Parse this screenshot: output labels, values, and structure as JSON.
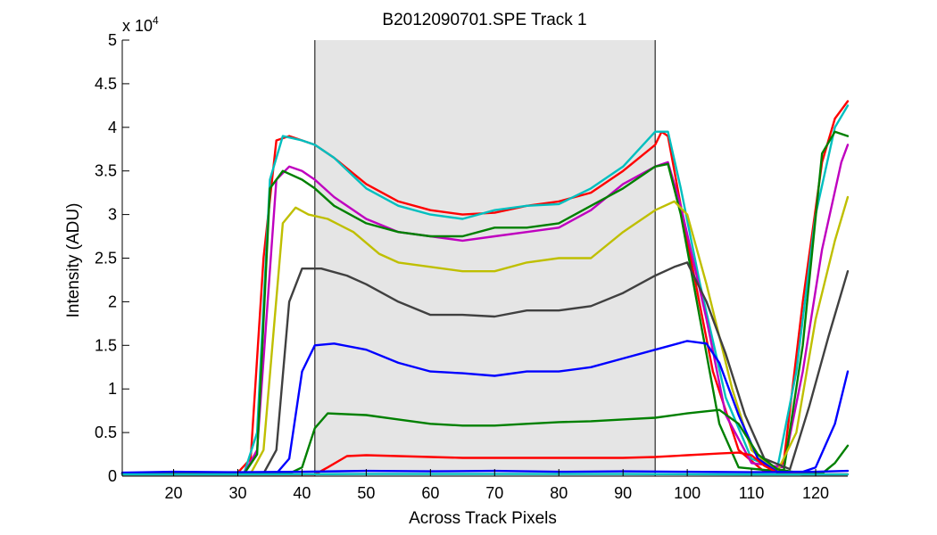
{
  "chart_data": {
    "type": "line",
    "title": "B2012090701.SPE   Track 1",
    "xlabel": "Across Track Pixels",
    "ylabel": "Intensity (ADU)",
    "y_exponent_label": "x 10",
    "y_exponent": "4",
    "xlim": [
      12,
      125
    ],
    "ylim": [
      0,
      50000
    ],
    "xticks": [
      20,
      30,
      40,
      50,
      60,
      70,
      80,
      90,
      100,
      110,
      120
    ],
    "yticks": [
      0,
      5000,
      10000,
      15000,
      20000,
      25000,
      30000,
      35000,
      40000,
      45000,
      50000
    ],
    "ytick_labels": [
      "0",
      "0.5",
      "1",
      "1.5",
      "2",
      "2.5",
      "3",
      "3.5",
      "4",
      "4.5",
      "5"
    ],
    "grid": false,
    "legend": "none",
    "shaded_region": {
      "x": [
        42,
        95
      ],
      "color": "#e5e5e5"
    },
    "series": [
      {
        "color": "#ff0000",
        "points": [
          [
            12,
            300
          ],
          [
            30,
            400
          ],
          [
            32,
            2000
          ],
          [
            34,
            25000
          ],
          [
            36,
            38500
          ],
          [
            38,
            39000
          ],
          [
            40,
            38500
          ],
          [
            42,
            38000
          ],
          [
            45,
            36500
          ],
          [
            50,
            33500
          ],
          [
            55,
            31500
          ],
          [
            60,
            30500
          ],
          [
            65,
            30000
          ],
          [
            70,
            30200
          ],
          [
            75,
            31000
          ],
          [
            80,
            31500
          ],
          [
            85,
            32500
          ],
          [
            90,
            35000
          ],
          [
            95,
            38000
          ],
          [
            96,
            39500
          ],
          [
            97,
            39000
          ],
          [
            98,
            35000
          ],
          [
            100,
            27000
          ],
          [
            104,
            12000
          ],
          [
            108,
            3000
          ],
          [
            112,
            500
          ],
          [
            115,
            1500
          ],
          [
            118,
            20000
          ],
          [
            121,
            36000
          ],
          [
            123,
            41000
          ],
          [
            125,
            43000
          ]
        ]
      },
      {
        "color": "#00bfbf",
        "points": [
          [
            12,
            300
          ],
          [
            31,
            400
          ],
          [
            33,
            5000
          ],
          [
            35,
            34000
          ],
          [
            37,
            39000
          ],
          [
            40,
            38500
          ],
          [
            42,
            38000
          ],
          [
            45,
            36500
          ],
          [
            50,
            33000
          ],
          [
            55,
            31000
          ],
          [
            60,
            30000
          ],
          [
            65,
            29500
          ],
          [
            70,
            30500
          ],
          [
            75,
            31000
          ],
          [
            80,
            31200
          ],
          [
            85,
            33000
          ],
          [
            90,
            35500
          ],
          [
            95,
            39500
          ],
          [
            97,
            39500
          ],
          [
            99,
            33000
          ],
          [
            102,
            22000
          ],
          [
            106,
            9000
          ],
          [
            110,
            2000
          ],
          [
            114,
            800
          ],
          [
            117,
            12000
          ],
          [
            120,
            30000
          ],
          [
            123,
            40000
          ],
          [
            125,
            42500
          ]
        ]
      },
      {
        "color": "#bf00bf",
        "points": [
          [
            12,
            300
          ],
          [
            31,
            300
          ],
          [
            33,
            3000
          ],
          [
            36,
            34000
          ],
          [
            38,
            35500
          ],
          [
            40,
            35000
          ],
          [
            42,
            34000
          ],
          [
            45,
            32000
          ],
          [
            50,
            29500
          ],
          [
            55,
            28000
          ],
          [
            60,
            27500
          ],
          [
            65,
            27000
          ],
          [
            70,
            27500
          ],
          [
            75,
            28000
          ],
          [
            80,
            28500
          ],
          [
            85,
            30500
          ],
          [
            90,
            33500
          ],
          [
            95,
            35500
          ],
          [
            97,
            36000
          ],
          [
            99,
            31000
          ],
          [
            103,
            18000
          ],
          [
            106,
            7000
          ],
          [
            110,
            1500
          ],
          [
            115,
            1000
          ],
          [
            118,
            12000
          ],
          [
            121,
            26000
          ],
          [
            124,
            36000
          ],
          [
            125,
            38000
          ]
        ]
      },
      {
        "color": "#008000",
        "points": [
          [
            12,
            300
          ],
          [
            31,
            300
          ],
          [
            33,
            2500
          ],
          [
            35,
            33000
          ],
          [
            37,
            35000
          ],
          [
            40,
            34000
          ],
          [
            42,
            33000
          ],
          [
            45,
            31000
          ],
          [
            50,
            29000
          ],
          [
            55,
            28000
          ],
          [
            60,
            27500
          ],
          [
            65,
            27500
          ],
          [
            70,
            28500
          ],
          [
            75,
            28500
          ],
          [
            80,
            29000
          ],
          [
            85,
            31000
          ],
          [
            90,
            33000
          ],
          [
            95,
            35500
          ],
          [
            97,
            35800
          ],
          [
            99,
            30000
          ],
          [
            102,
            18000
          ],
          [
            105,
            6000
          ],
          [
            108,
            1000
          ],
          [
            115,
            500
          ],
          [
            118,
            15000
          ],
          [
            121,
            37000
          ],
          [
            123,
            39500
          ],
          [
            125,
            39000
          ]
        ]
      },
      {
        "color": "#bfbf00",
        "points": [
          [
            12,
            300
          ],
          [
            32,
            300
          ],
          [
            34,
            3000
          ],
          [
            37,
            29000
          ],
          [
            39,
            30800
          ],
          [
            41,
            30000
          ],
          [
            44,
            29500
          ],
          [
            48,
            28000
          ],
          [
            52,
            25500
          ],
          [
            55,
            24500
          ],
          [
            60,
            24000
          ],
          [
            65,
            23500
          ],
          [
            70,
            23500
          ],
          [
            75,
            24500
          ],
          [
            80,
            25000
          ],
          [
            85,
            25000
          ],
          [
            90,
            28000
          ],
          [
            95,
            30500
          ],
          [
            98,
            31500
          ],
          [
            100,
            30000
          ],
          [
            103,
            22000
          ],
          [
            107,
            10000
          ],
          [
            110,
            3000
          ],
          [
            114,
            500
          ],
          [
            117,
            5000
          ],
          [
            120,
            18000
          ],
          [
            123,
            27000
          ],
          [
            125,
            32000
          ]
        ]
      },
      {
        "color": "#404040",
        "points": [
          [
            12,
            300
          ],
          [
            34,
            300
          ],
          [
            36,
            3000
          ],
          [
            38,
            20000
          ],
          [
            40,
            23800
          ],
          [
            43,
            23800
          ],
          [
            47,
            23000
          ],
          [
            50,
            22000
          ],
          [
            55,
            20000
          ],
          [
            60,
            18500
          ],
          [
            65,
            18500
          ],
          [
            70,
            18300
          ],
          [
            75,
            19000
          ],
          [
            80,
            19000
          ],
          [
            85,
            19500
          ],
          [
            90,
            21000
          ],
          [
            95,
            23000
          ],
          [
            98,
            24000
          ],
          [
            100,
            24500
          ],
          [
            103,
            20000
          ],
          [
            106,
            14000
          ],
          [
            109,
            7000
          ],
          [
            112,
            2000
          ],
          [
            116,
            800
          ],
          [
            119,
            8000
          ],
          [
            122,
            16000
          ],
          [
            125,
            23500
          ]
        ]
      },
      {
        "color": "#0000ff",
        "points": [
          [
            12,
            300
          ],
          [
            36,
            300
          ],
          [
            38,
            2000
          ],
          [
            40,
            12000
          ],
          [
            42,
            15000
          ],
          [
            45,
            15200
          ],
          [
            50,
            14500
          ],
          [
            55,
            13000
          ],
          [
            60,
            12000
          ],
          [
            65,
            11800
          ],
          [
            70,
            11500
          ],
          [
            75,
            12000
          ],
          [
            80,
            12000
          ],
          [
            85,
            12500
          ],
          [
            90,
            13500
          ],
          [
            95,
            14500
          ],
          [
            100,
            15500
          ],
          [
            103,
            15200
          ],
          [
            105,
            13000
          ],
          [
            108,
            7000
          ],
          [
            111,
            2000
          ],
          [
            114,
            500
          ],
          [
            118,
            500
          ],
          [
            120,
            1000
          ],
          [
            123,
            6000
          ],
          [
            125,
            12000
          ]
        ]
      },
      {
        "color": "#008000",
        "points": [
          [
            12,
            300
          ],
          [
            38,
            300
          ],
          [
            40,
            1000
          ],
          [
            42,
            5500
          ],
          [
            44,
            7200
          ],
          [
            50,
            7000
          ],
          [
            55,
            6500
          ],
          [
            60,
            6000
          ],
          [
            65,
            5800
          ],
          [
            70,
            5800
          ],
          [
            75,
            6000
          ],
          [
            80,
            6200
          ],
          [
            85,
            6300
          ],
          [
            90,
            6500
          ],
          [
            95,
            6700
          ],
          [
            100,
            7200
          ],
          [
            105,
            7600
          ],
          [
            108,
            6000
          ],
          [
            111,
            2500
          ],
          [
            114,
            800
          ],
          [
            118,
            300
          ],
          [
            121,
            300
          ],
          [
            123,
            1500
          ],
          [
            125,
            3500
          ]
        ]
      },
      {
        "color": "#ff0000",
        "points": [
          [
            12,
            200
          ],
          [
            42,
            200
          ],
          [
            44,
            1000
          ],
          [
            47,
            2300
          ],
          [
            50,
            2400
          ],
          [
            55,
            2300
          ],
          [
            60,
            2200
          ],
          [
            65,
            2100
          ],
          [
            70,
            2100
          ],
          [
            75,
            2100
          ],
          [
            80,
            2100
          ],
          [
            85,
            2100
          ],
          [
            90,
            2100
          ],
          [
            95,
            2200
          ],
          [
            100,
            2400
          ],
          [
            105,
            2600
          ],
          [
            108,
            2700
          ],
          [
            110,
            2400
          ],
          [
            112,
            1200
          ],
          [
            114,
            400
          ],
          [
            118,
            200
          ],
          [
            125,
            200
          ]
        ]
      },
      {
        "color": "#0000ff",
        "points": [
          [
            12,
            400
          ],
          [
            20,
            500
          ],
          [
            30,
            450
          ],
          [
            40,
            500
          ],
          [
            50,
            600
          ],
          [
            60,
            550
          ],
          [
            70,
            600
          ],
          [
            80,
            500
          ],
          [
            90,
            550
          ],
          [
            100,
            500
          ],
          [
            110,
            450
          ],
          [
            120,
            500
          ],
          [
            125,
            600
          ]
        ]
      },
      {
        "color": "#00bfbf",
        "points": [
          [
            12,
            200
          ],
          [
            30,
            200
          ],
          [
            50,
            250
          ],
          [
            70,
            250
          ],
          [
            90,
            250
          ],
          [
            110,
            200
          ],
          [
            125,
            200
          ]
        ]
      }
    ]
  }
}
